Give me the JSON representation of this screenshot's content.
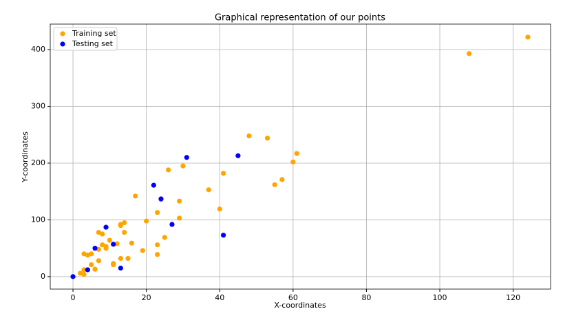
{
  "chart_data": {
    "type": "scatter",
    "title": "Graphical representation of our points",
    "x_label": "X-coordinates",
    "y_label": "Y-coordinates",
    "xlim": [
      -6.2,
      130.2
    ],
    "ylim": [
      -22,
      445
    ],
    "xticks": [
      0,
      20,
      40,
      60,
      80,
      100,
      120
    ],
    "yticks": [
      0,
      100,
      200,
      300,
      400
    ],
    "grid": true,
    "legend": "upper-left",
    "series": [
      {
        "name": "Training set",
        "color": "#ffa500",
        "x": [
          124,
          108,
          48,
          53,
          61,
          60,
          30,
          26,
          41,
          37,
          57,
          55,
          17,
          24,
          29,
          40,
          23,
          29,
          20,
          14,
          13,
          13,
          14,
          7,
          8,
          10,
          16,
          12,
          8,
          9,
          9,
          7,
          25,
          23,
          19,
          5,
          3,
          4,
          23,
          13,
          15,
          7,
          11,
          11,
          5,
          3,
          6,
          2,
          3
        ],
        "y": [
          422,
          393,
          248,
          244,
          217,
          202,
          195,
          188,
          182,
          153,
          171,
          162,
          142,
          136,
          133,
          119,
          113,
          103,
          98,
          95,
          90,
          92,
          78,
          78,
          75,
          64,
          59,
          58,
          56,
          53,
          50,
          48,
          69,
          56,
          46,
          40,
          40,
          38,
          39,
          32,
          32,
          28,
          23,
          21,
          21,
          12,
          13,
          6,
          4
        ]
      },
      {
        "name": "Testing set",
        "color": "#0000ff",
        "x": [
          0,
          31,
          45,
          22,
          24,
          9,
          27,
          41,
          6,
          11,
          4,
          13
        ],
        "y": [
          0,
          210,
          213,
          161,
          137,
          87,
          92,
          73,
          50,
          57,
          12,
          15
        ]
      }
    ]
  }
}
